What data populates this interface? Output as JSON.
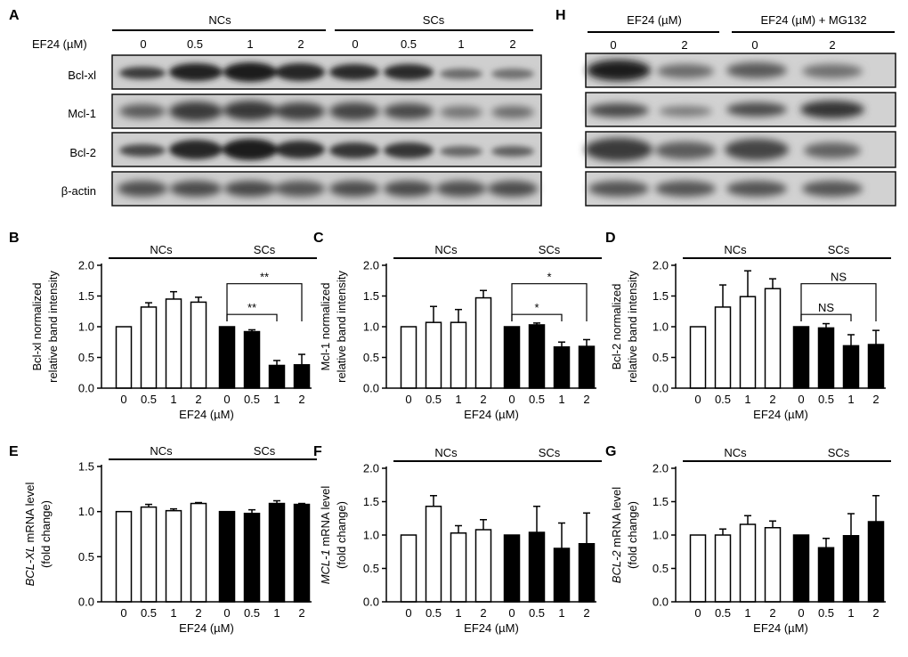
{
  "panels": {
    "A": "A",
    "B": "B",
    "C": "C",
    "D": "D",
    "E": "E",
    "F": "F",
    "G": "G",
    "H": "H"
  },
  "western_A": {
    "groups": [
      "NCs",
      "SCs"
    ],
    "dose_label": "EF24 (µM)",
    "doses": [
      "0",
      "0.5",
      "1",
      "2",
      "0",
      "0.5",
      "1",
      "2"
    ],
    "proteins": [
      "Bcl-xl",
      "Mcl-1",
      "Bcl-2",
      "β-actin"
    ]
  },
  "western_H": {
    "header_left": "EF24 (µM)",
    "header_right": "EF24 (µM)  + MG132",
    "doses": [
      "0",
      "2",
      "0",
      "2"
    ]
  },
  "chart_data": [
    {
      "id": "B",
      "type": "bar",
      "ylabel": [
        "Bcl-xl normalized",
        "relative band intensity"
      ],
      "ylabel_italic": "",
      "xlabel": "EF24 (µM)",
      "ylim": [
        0,
        2.0
      ],
      "yticks": [
        "0.0",
        "0.5",
        "1.0",
        "1.5",
        "2.0"
      ],
      "categories": [
        "0",
        "0.5",
        "1",
        "2",
        "0",
        "0.5",
        "1",
        "2"
      ],
      "groups": [
        {
          "label": "NCs",
          "fill": "#ffffff"
        },
        {
          "label": "SCs",
          "fill": "#000000"
        }
      ],
      "values": [
        1.0,
        1.32,
        1.45,
        1.4,
        1.0,
        0.92,
        0.37,
        0.38
      ],
      "errors": [
        0,
        0.07,
        0.12,
        0.08,
        0,
        0.03,
        0.08,
        0.17
      ],
      "significance": [
        {
          "from": 4,
          "to": 7,
          "label": "**"
        },
        {
          "from": 4,
          "to": 6,
          "label": "**"
        }
      ]
    },
    {
      "id": "C",
      "type": "bar",
      "ylabel": [
        "Mcl-1 normalized",
        "relative band intensity"
      ],
      "ylabel_italic": "",
      "xlabel": "EF24 (µM)",
      "ylim": [
        0,
        2.0
      ],
      "yticks": [
        "0.0",
        "0.5",
        "1.0",
        "1.5",
        "2.0"
      ],
      "categories": [
        "0",
        "0.5",
        "1",
        "2",
        "0",
        "0.5",
        "1",
        "2"
      ],
      "groups": [
        {
          "label": "NCs",
          "fill": "#ffffff"
        },
        {
          "label": "SCs",
          "fill": "#000000"
        }
      ],
      "values": [
        1.0,
        1.07,
        1.07,
        1.47,
        1.0,
        1.03,
        0.67,
        0.68
      ],
      "errors": [
        0,
        0.26,
        0.21,
        0.12,
        0,
        0.03,
        0.08,
        0.11
      ],
      "significance": [
        {
          "from": 4,
          "to": 7,
          "label": "*"
        },
        {
          "from": 4,
          "to": 6,
          "label": "*"
        }
      ]
    },
    {
      "id": "D",
      "type": "bar",
      "ylabel": [
        "Bcl-2 normalized",
        "relative band intensity"
      ],
      "ylabel_italic": "",
      "xlabel": "EF24 (µM)",
      "ylim": [
        0,
        2.0
      ],
      "yticks": [
        "0.0",
        "0.5",
        "1.0",
        "1.5",
        "2.0"
      ],
      "categories": [
        "0",
        "0.5",
        "1",
        "2",
        "0",
        "0.5",
        "1",
        "2"
      ],
      "groups": [
        {
          "label": "NCs",
          "fill": "#ffffff"
        },
        {
          "label": "SCs",
          "fill": "#000000"
        }
      ],
      "values": [
        1.0,
        1.32,
        1.49,
        1.62,
        1.0,
        0.98,
        0.69,
        0.71
      ],
      "errors": [
        0,
        0.36,
        0.42,
        0.16,
        0,
        0.07,
        0.18,
        0.23
      ],
      "significance": [
        {
          "from": 4,
          "to": 7,
          "label": "NS"
        },
        {
          "from": 4,
          "to": 6,
          "label": "NS"
        }
      ]
    },
    {
      "id": "E",
      "type": "bar",
      "ylabel": [
        "mRNA level",
        "(fold change)"
      ],
      "ylabel_italic": "BCL-XL",
      "xlabel": "EF24 (µM)",
      "ylim": [
        0,
        1.5
      ],
      "yticks": [
        "0.0",
        "0.5",
        "1.0",
        "1.5"
      ],
      "categories": [
        "0",
        "0.5",
        "1",
        "2",
        "0",
        "0.5",
        "1",
        "2"
      ],
      "groups": [
        {
          "label": "NCs",
          "fill": "#ffffff"
        },
        {
          "label": "SCs",
          "fill": "#000000"
        }
      ],
      "values": [
        1.0,
        1.05,
        1.01,
        1.09,
        1.0,
        0.98,
        1.09,
        1.08
      ],
      "errors": [
        0,
        0.03,
        0.02,
        0.01,
        0,
        0.04,
        0.03,
        0.01
      ],
      "significance": []
    },
    {
      "id": "F",
      "type": "bar",
      "ylabel": [
        "mRNA level",
        "(fold change)"
      ],
      "ylabel_italic": "MCL-1",
      "xlabel": "EF24 (µM)",
      "ylim": [
        0,
        2.0
      ],
      "yticks": [
        "0.0",
        "0.5",
        "1.0",
        "1.5",
        "2.0"
      ],
      "categories": [
        "0",
        "0.5",
        "1",
        "2",
        "0",
        "0.5",
        "1",
        "2"
      ],
      "groups": [
        {
          "label": "NCs",
          "fill": "#ffffff"
        },
        {
          "label": "SCs",
          "fill": "#000000"
        }
      ],
      "values": [
        1.0,
        1.43,
        1.03,
        1.08,
        1.0,
        1.04,
        0.8,
        0.87
      ],
      "errors": [
        0,
        0.16,
        0.11,
        0.15,
        0,
        0.39,
        0.38,
        0.46
      ],
      "significance": []
    },
    {
      "id": "G",
      "type": "bar",
      "ylabel": [
        "mRNA level",
        "(fold change)"
      ],
      "ylabel_italic": "BCL-2",
      "xlabel": "EF24 (µM)",
      "ylim": [
        0,
        2.0
      ],
      "yticks": [
        "0.0",
        "0.5",
        "1.0",
        "1.5",
        "2.0"
      ],
      "categories": [
        "0",
        "0.5",
        "1",
        "2",
        "0",
        "0.5",
        "1",
        "2"
      ],
      "groups": [
        {
          "label": "NCs",
          "fill": "#ffffff"
        },
        {
          "label": "SCs",
          "fill": "#000000"
        }
      ],
      "values": [
        1.0,
        1.0,
        1.16,
        1.11,
        1.0,
        0.81,
        0.99,
        1.2
      ],
      "errors": [
        0,
        0.09,
        0.13,
        0.1,
        0,
        0.14,
        0.33,
        0.39
      ],
      "significance": []
    }
  ]
}
